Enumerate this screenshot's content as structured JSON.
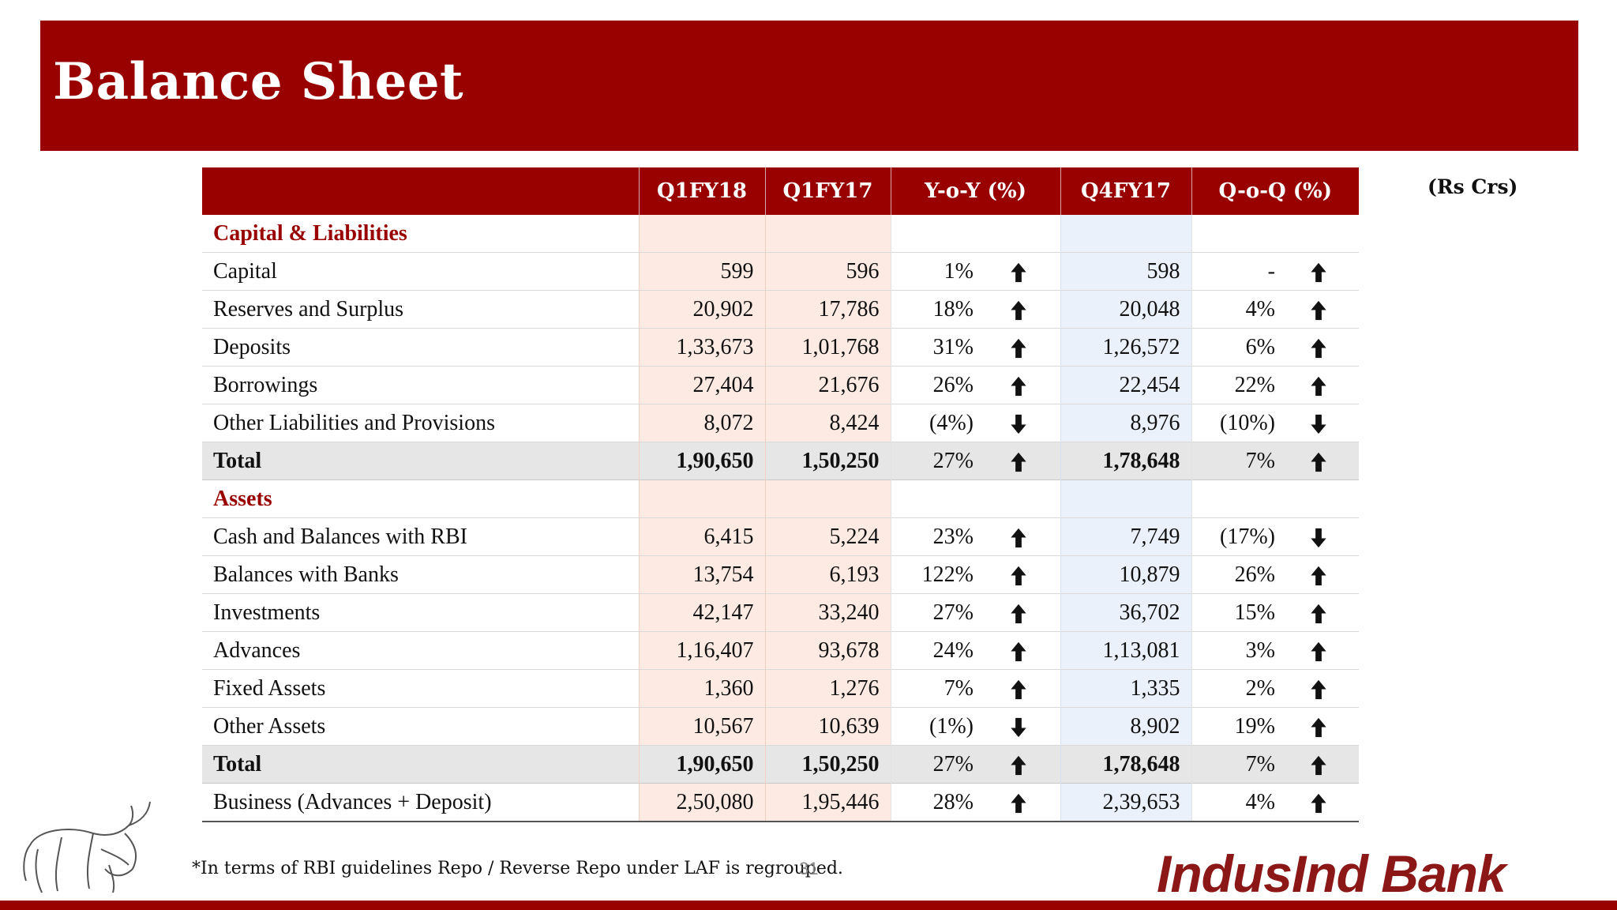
{
  "header": {
    "title": "Balance Sheet",
    "units": "(Rs Crs)"
  },
  "table": {
    "columns": [
      "",
      "Q1FY18",
      "Q1FY17",
      "Y-o-Y (%)",
      "Q4FY17",
      "Q-o-Q (%)"
    ],
    "sections": [
      {
        "title": "Capital & Liabilities",
        "rows": [
          {
            "label": "Capital",
            "q1fy18": "599",
            "q1fy17": "596",
            "yoy": "1%",
            "yoy_dir": "up",
            "q4fy17": "598",
            "qoq": "-",
            "qoq_dir": "up"
          },
          {
            "label": "Reserves and Surplus",
            "q1fy18": "20,902",
            "q1fy17": "17,786",
            "yoy": "18%",
            "yoy_dir": "up",
            "q4fy17": "20,048",
            "qoq": "4%",
            "qoq_dir": "up"
          },
          {
            "label": "Deposits",
            "q1fy18": "1,33,673",
            "q1fy17": "1,01,768",
            "yoy": "31%",
            "yoy_dir": "up",
            "q4fy17": "1,26,572",
            "qoq": "6%",
            "qoq_dir": "up"
          },
          {
            "label": "Borrowings",
            "q1fy18": "27,404",
            "q1fy17": "21,676",
            "yoy": "26%",
            "yoy_dir": "up",
            "q4fy17": "22,454",
            "qoq": "22%",
            "qoq_dir": "up"
          },
          {
            "label": "Other Liabilities and Provisions",
            "q1fy18": "8,072",
            "q1fy17": "8,424",
            "yoy": "(4%)",
            "yoy_dir": "down",
            "q4fy17": "8,976",
            "qoq": "(10%)",
            "qoq_dir": "down"
          }
        ],
        "total": {
          "label": "Total",
          "q1fy18": "1,90,650",
          "q1fy17": "1,50,250",
          "yoy": "27%",
          "yoy_dir": "up",
          "q4fy17": "1,78,648",
          "qoq": "7%",
          "qoq_dir": "up"
        }
      },
      {
        "title": "Assets",
        "rows": [
          {
            "label": "Cash and Balances with RBI",
            "q1fy18": "6,415",
            "q1fy17": "5,224",
            "yoy": "23%",
            "yoy_dir": "up",
            "q4fy17": "7,749",
            "qoq": "(17%)",
            "qoq_dir": "down"
          },
          {
            "label": "Balances with Banks",
            "q1fy18": "13,754",
            "q1fy17": "6,193",
            "yoy": "122%",
            "yoy_dir": "up",
            "q4fy17": "10,879",
            "qoq": "26%",
            "qoq_dir": "up"
          },
          {
            "label": "Investments",
            "q1fy18": "42,147",
            "q1fy17": "33,240",
            "yoy": "27%",
            "yoy_dir": "up",
            "q4fy17": "36,702",
            "qoq": "15%",
            "qoq_dir": "up"
          },
          {
            "label": "Advances",
            "q1fy18": "1,16,407",
            "q1fy17": "93,678",
            "yoy": "24%",
            "yoy_dir": "up",
            "q4fy17": "1,13,081",
            "qoq": "3%",
            "qoq_dir": "up"
          },
          {
            "label": "Fixed Assets",
            "q1fy18": "1,360",
            "q1fy17": "1,276",
            "yoy": "7%",
            "yoy_dir": "up",
            "q4fy17": "1,335",
            "qoq": "2%",
            "qoq_dir": "up"
          },
          {
            "label": "Other Assets",
            "q1fy18": "10,567",
            "q1fy17": "10,639",
            "yoy": "(1%)",
            "yoy_dir": "down",
            "q4fy17": "8,902",
            "qoq": "19%",
            "qoq_dir": "up"
          }
        ],
        "total": {
          "label": "Total",
          "q1fy18": "1,90,650",
          "q1fy17": "1,50,250",
          "yoy": "27%",
          "yoy_dir": "up",
          "q4fy17": "1,78,648",
          "qoq": "7%",
          "qoq_dir": "up"
        }
      }
    ],
    "business": {
      "label": "Business (Advances + Deposit)",
      "q1fy18": "2,50,080",
      "q1fy17": "1,95,446",
      "yoy": "28%",
      "yoy_dir": "up",
      "q4fy17": "2,39,653",
      "qoq": "4%",
      "qoq_dir": "up"
    }
  },
  "footer": {
    "footnote": "*In terms of RBI guidelines Repo / Reverse Repo under LAF is regrouped.",
    "page_number": "31",
    "brand": "IndusInd Bank",
    "brand_color": "#8b1717",
    "logo_icon": "bull-logo-icon"
  },
  "colors": {
    "accent": "#990000",
    "q1_highlight": "#fdebe3",
    "q4_highlight": "#eaf1fb",
    "total_row": "#e6e6e6"
  }
}
